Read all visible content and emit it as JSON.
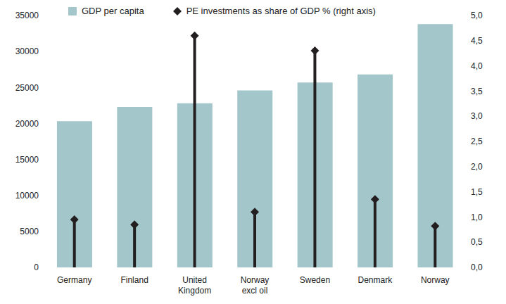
{
  "chart_data": {
    "type": "bar",
    "categories": [
      "Germany",
      "Finland",
      "United Kingdom",
      "Norway excl oil",
      "Sweden",
      "Denmark",
      "Norway"
    ],
    "series": [
      {
        "name": "GDP per capita",
        "type": "bar",
        "color": "#a3c6ca",
        "values": [
          20300,
          22300,
          22800,
          24600,
          25700,
          26800,
          33800
        ]
      },
      {
        "name": "PE investments as share of GDP % (right axis)",
        "type": "lollipop",
        "axis": "y2",
        "marker": "diamond",
        "color": "#231f20",
        "values": [
          0.95,
          0.85,
          4.6,
          1.1,
          4.3,
          1.35,
          0.82
        ]
      }
    ],
    "ylim": [
      0,
      35000
    ],
    "yticks": [
      0,
      5000,
      10000,
      15000,
      20000,
      25000,
      30000,
      35000
    ],
    "y2lim": [
      0,
      5
    ],
    "y2ticks": [
      {
        "value": 0,
        "label": "0,0"
      },
      {
        "value": 0.5,
        "label": "0,5"
      },
      {
        "value": 1,
        "label": "1,0"
      },
      {
        "value": 1.5,
        "label": "1,5"
      },
      {
        "value": 2,
        "label": "2,0"
      },
      {
        "value": 2.5,
        "label": "2,5"
      },
      {
        "value": 3,
        "label": "3,0"
      },
      {
        "value": 3.5,
        "label": "3,5"
      },
      {
        "value": 4,
        "label": "4,0"
      },
      {
        "value": 4.5,
        "label": "4,5"
      },
      {
        "value": 5,
        "label": "5,0"
      }
    ],
    "grid": false
  }
}
